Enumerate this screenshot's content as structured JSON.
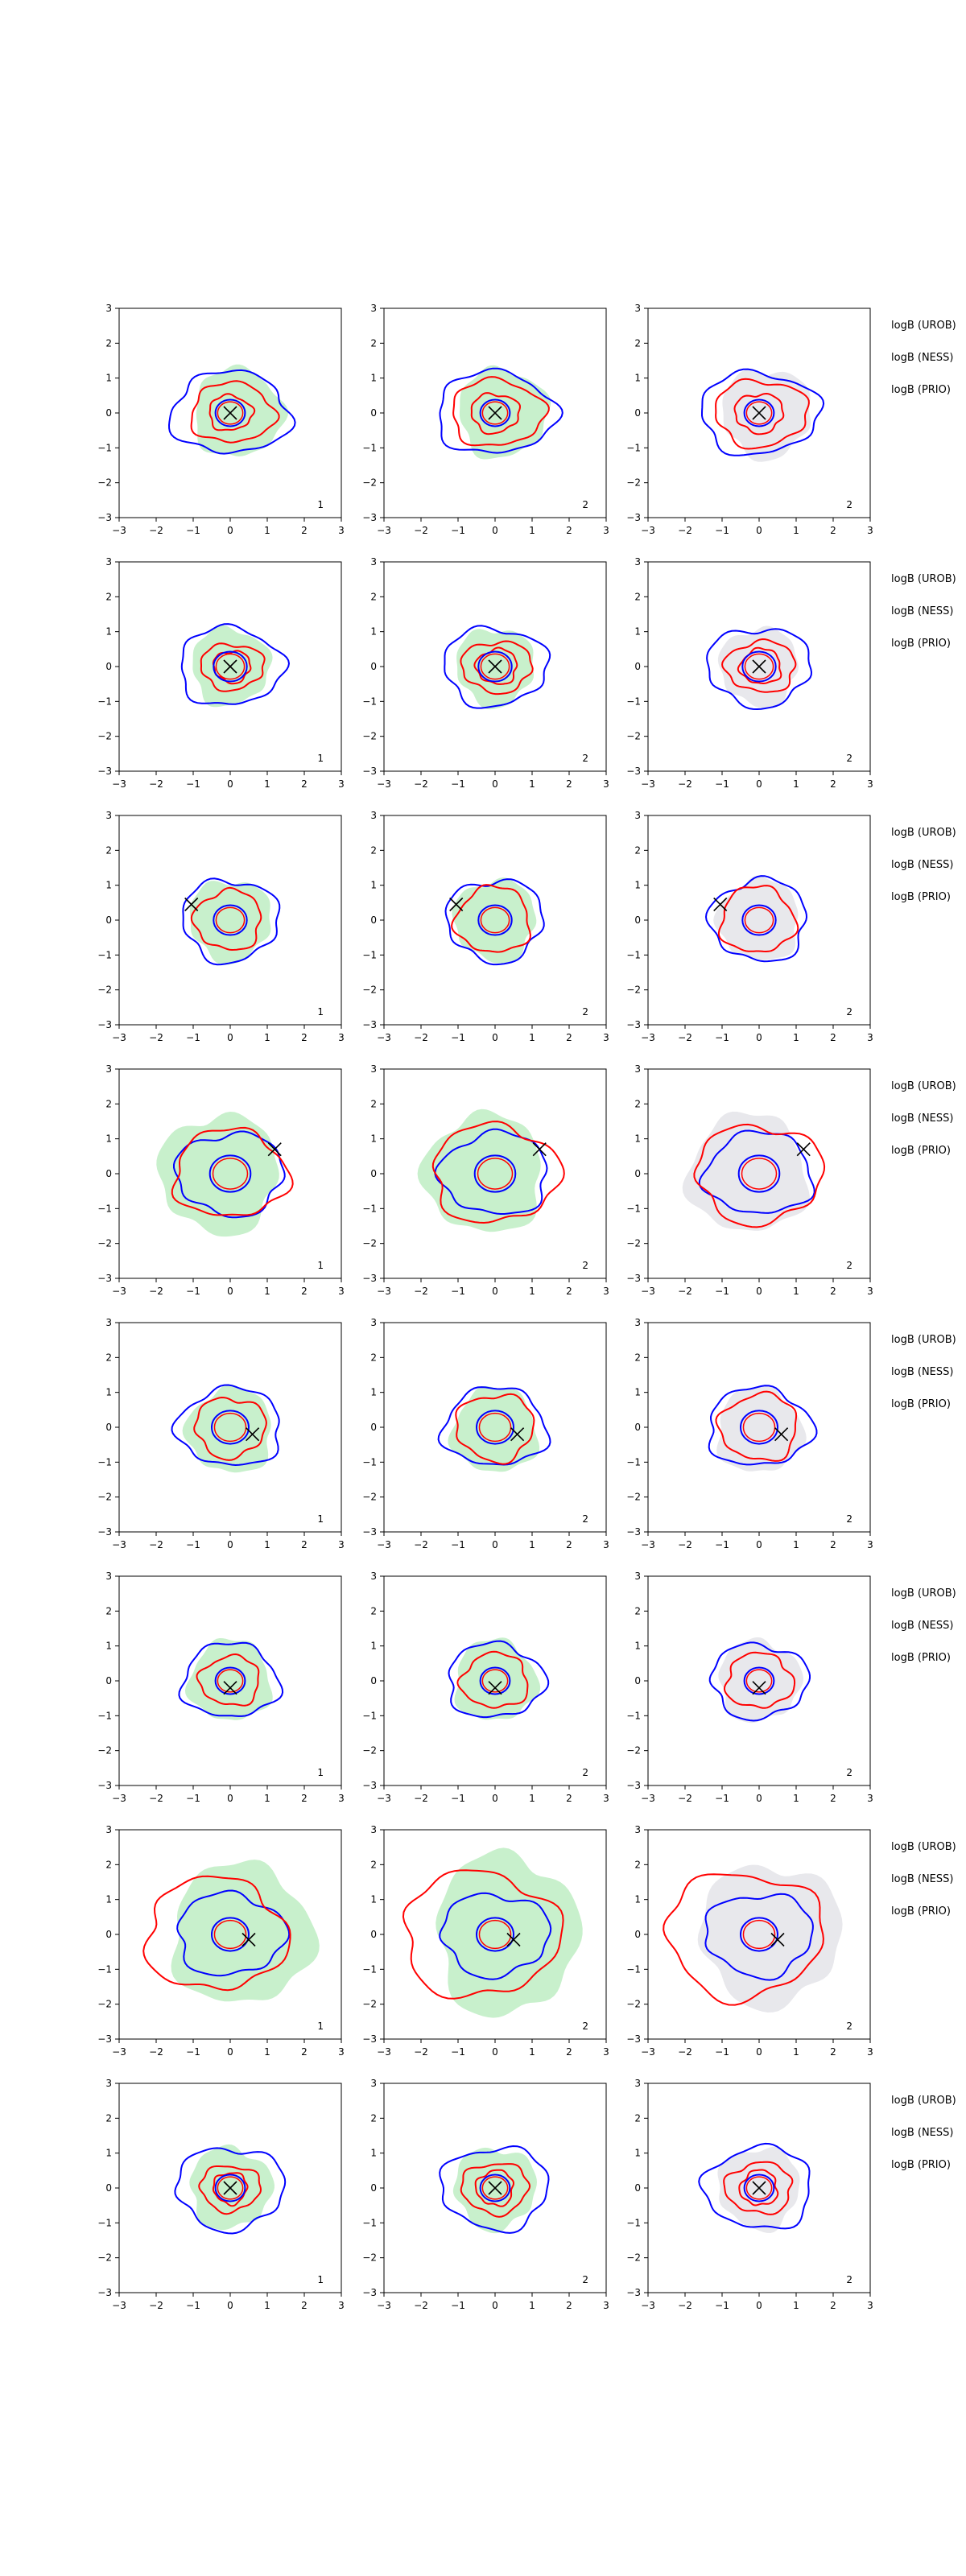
{
  "chart_data": {
    "type": "contour-grid",
    "layout": {
      "rows": 8,
      "cols": 3
    },
    "axes": {
      "xlim": [
        -3,
        3
      ],
      "ylim": [
        -3,
        3
      ],
      "xticks": [
        -3,
        -2,
        -1,
        0,
        1,
        2,
        3
      ],
      "yticks": [
        -3,
        -2,
        -1,
        0,
        1,
        2,
        3
      ],
      "tick_labels": [
        "−3",
        "−2",
        "−1",
        "0",
        "1",
        "2",
        "3"
      ],
      "grid": false
    },
    "colors": {
      "blue_contour": "#0000ff",
      "red_contour": "#ff0000",
      "green_fill": "#c8f0cc",
      "gray_fill": "#e8e8ec",
      "marker": "#000000"
    },
    "panel_labels_by_column": [
      "1",
      "2",
      "2"
    ],
    "row_annotations": [
      "logB (UROB)",
      "logB (NESS)",
      "logB (PRIO)"
    ],
    "rows": [
      {
        "marker": [
          0.0,
          0.0
        ],
        "blue": [
          [
            1.6,
            1.05,
            0.0
          ]
        ],
        "red": [
          [
            1.25,
            0.85,
            0.05
          ],
          [
            0.65,
            0.5,
            0.0
          ]
        ],
        "inner_blue": 0.4,
        "fill": 1.2,
        "fill_offset": [
          0.2,
          0.0
        ]
      },
      {
        "marker": [
          0.0,
          0.0
        ],
        "blue": [
          [
            1.4,
            1.0,
            0.0
          ]
        ],
        "red": [
          [
            0.95,
            0.65,
            0.05
          ],
          [
            0.55,
            0.45,
            0.05
          ]
        ],
        "inner_blue": 0.45,
        "fill": 1.05,
        "fill_offset": [
          0.0,
          0.0
        ]
      },
      {
        "marker": [
          -1.05,
          0.45
        ],
        "blue": [
          [
            1.3,
            1.05,
            0.0
          ]
        ],
        "red": [
          [
            1.0,
            0.85,
            -0.05
          ]
        ],
        "inner_blue": 0.45,
        "fill": 1.1,
        "fill_offset": [
          0.0,
          0.0
        ]
      },
      {
        "marker": [
          1.2,
          0.7
        ],
        "blue": [
          [
            1.45,
            1.05,
            0.0
          ]
        ],
        "red": [
          [
            1.7,
            1.25,
            0.0
          ]
        ],
        "inner_blue": 0.55,
        "fill": 1.6,
        "fill_offset": [
          -0.3,
          0.0
        ]
      },
      {
        "marker": [
          0.6,
          -0.2
        ],
        "blue": [
          [
            1.4,
            1.0,
            0.0
          ]
        ],
        "red": [
          [
            1.05,
            0.85,
            0.0
          ]
        ],
        "inner_blue": 0.5,
        "fill": 1.15,
        "fill_offset": [
          0.0,
          -0.1
        ]
      },
      {
        "marker": [
          0.0,
          -0.2
        ],
        "blue": [
          [
            1.3,
            0.95,
            0.0
          ]
        ],
        "red": [
          [
            0.9,
            0.7,
            0.0
          ]
        ],
        "inner_blue": 0.4,
        "fill": 1.1,
        "fill_offset": [
          0.0,
          0.0
        ]
      },
      {
        "marker": [
          0.5,
          -0.15
        ],
        "blue": [
          [
            1.45,
            1.05,
            0.0
          ]
        ],
        "red": [
          [
            2.1,
            1.6,
            -0.4
          ]
        ],
        "inner_blue": 0.5,
        "fill": 1.9,
        "fill_offset": [
          0.3,
          0.0
        ]
      },
      {
        "marker": [
          0.0,
          0.0
        ],
        "blue": [
          [
            1.45,
            1.05,
            0.0
          ]
        ],
        "red": [
          [
            0.9,
            0.65,
            0.0
          ],
          [
            0.5,
            0.45,
            0.0
          ]
        ],
        "inner_blue": 0.4,
        "fill": 1.1,
        "fill_offset": [
          0.0,
          0.0
        ]
      }
    ]
  }
}
